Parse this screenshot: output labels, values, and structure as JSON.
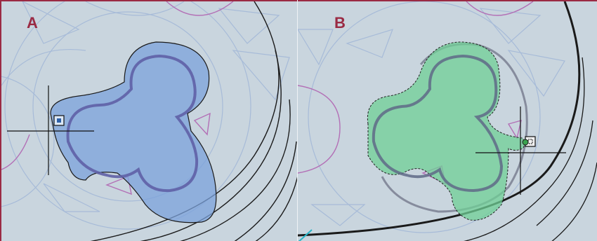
{
  "panels": [
    {
      "id": "A",
      "label": "A",
      "selection_color": "#7ba2db",
      "selection_state": "selected-solid"
    },
    {
      "id": "B",
      "label": "B",
      "selection_color": "#6fcf95",
      "selection_state": "selected-dashed"
    }
  ],
  "colors": {
    "background": "#c9d5de",
    "border": "#9a2a43",
    "faint_lines": "#9fb7d6",
    "magenta_lines": "#b370b6",
    "dark_lines": "#1a1a1a",
    "cyan_line": "#27b5c8"
  },
  "icons": [
    "crosshair-cursor-icon",
    "snap-grip-icon",
    "move-grip-icon"
  ]
}
